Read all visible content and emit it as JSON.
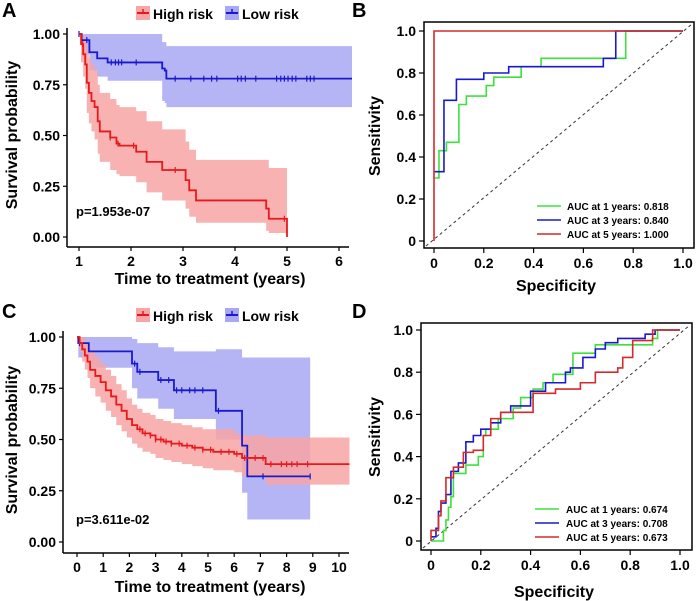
{
  "colors": {
    "high": "#e8191c",
    "high_band": "#f8a5a5",
    "low": "#1a1acc",
    "low_band": "#a8a8f5",
    "roc1": "#3ee03e",
    "roc3": "#1a1acc",
    "roc5": "#d42a2a"
  },
  "chart_data": [
    {
      "panel": "A",
      "type": "line",
      "subtype": "kaplan-meier",
      "title": "",
      "xlabel": "Time to treatment (years)",
      "ylabel": "Survival probability",
      "xlim": [
        0.85,
        6.25
      ],
      "ylim": [
        0,
        1
      ],
      "xticks": [
        "1",
        "2",
        "3",
        "4",
        "5",
        "6"
      ],
      "xtick_values": [
        1,
        2,
        3,
        4,
        5,
        6
      ],
      "yticks": [
        "0.00",
        "0.25",
        "0.50",
        "0.75",
        "1.00"
      ],
      "ytick_values": [
        0,
        0.25,
        0.5,
        0.75,
        1
      ],
      "legend": [
        "High risk",
        "Low risk"
      ],
      "legend_position": "top",
      "annotation": "p=1.953e-07",
      "series": [
        {
          "name": "High risk",
          "x": [
            1.0,
            1.04,
            1.08,
            1.12,
            1.15,
            1.19,
            1.24,
            1.3,
            1.36,
            1.4,
            1.43,
            1.6,
            1.72,
            1.78,
            2.1,
            2.3,
            2.6,
            2.9,
            3.05,
            3.12,
            3.25,
            4.6,
            4.65,
            4.7,
            5.0
          ],
          "y": [
            1.0,
            0.95,
            0.9,
            0.85,
            0.76,
            0.71,
            0.67,
            0.64,
            0.57,
            0.52,
            0.52,
            0.49,
            0.46,
            0.45,
            0.42,
            0.37,
            0.33,
            0.33,
            0.28,
            0.23,
            0.18,
            0.14,
            0.09,
            0.09,
            0.0
          ],
          "ci_upper": [
            1.0,
            1.0,
            1.0,
            0.97,
            0.92,
            0.88,
            0.85,
            0.82,
            0.75,
            0.71,
            0.71,
            0.68,
            0.65,
            0.64,
            0.62,
            0.57,
            0.53,
            0.53,
            0.47,
            0.43,
            0.38,
            0.38,
            0.34,
            0.34,
            0.34
          ],
          "ci_lower": [
            1.0,
            0.86,
            0.79,
            0.73,
            0.61,
            0.56,
            0.52,
            0.48,
            0.41,
            0.37,
            0.37,
            0.33,
            0.31,
            0.3,
            0.27,
            0.22,
            0.18,
            0.18,
            0.14,
            0.1,
            0.07,
            0.03,
            0.02,
            0.02,
            0.0
          ],
          "censored": [
            1.07,
            1.6,
            1.75,
            2.05,
            2.85,
            4.95
          ]
        },
        {
          "name": "Low risk",
          "x": [
            1.0,
            1.05,
            1.2,
            1.35,
            1.55,
            2.6,
            2.65,
            2.68,
            6.25
          ],
          "y": [
            1.0,
            0.97,
            0.91,
            0.88,
            0.86,
            0.83,
            0.82,
            0.78,
            0.78
          ],
          "ci_upper": [
            1.0,
            1.0,
            1.0,
            1.0,
            1.0,
            0.96,
            0.96,
            0.94,
            0.94
          ],
          "ci_lower": [
            1.0,
            0.9,
            0.82,
            0.79,
            0.77,
            0.67,
            0.66,
            0.64,
            0.64
          ],
          "censored": [
            1.0,
            1.15,
            1.62,
            1.7,
            1.76,
            1.82,
            2.1,
            2.85,
            3.15,
            3.4,
            3.55,
            3.65,
            4.05,
            4.12,
            4.2,
            4.4,
            4.8,
            4.88,
            4.95,
            5.02,
            5.1,
            5.17,
            5.38,
            5.45,
            5.52
          ]
        }
      ]
    },
    {
      "panel": "B",
      "type": "line",
      "subtype": "roc",
      "title": "",
      "xlabel": "Specificity",
      "ylabel": "Sensitivity",
      "xlim": [
        0,
        1
      ],
      "ylim": [
        0,
        1
      ],
      "xticks": [
        "0",
        "0.2",
        "0.4",
        "0.6",
        "0.8",
        "1.0"
      ],
      "xtick_values": [
        0,
        0.2,
        0.4,
        0.6,
        0.8,
        1.0
      ],
      "yticks": [
        "0",
        "0.2",
        "0.4",
        "0.6",
        "0.8",
        "1.0"
      ],
      "ytick_values": [
        0,
        0.2,
        0.4,
        0.6,
        0.8,
        1.0
      ],
      "legend_position": "bottom-right",
      "diagonal": true,
      "series": [
        {
          "name": "AUC at 1 years: 0.818",
          "auc": 0.818,
          "x": [
            0,
            0.02,
            0.02,
            0.05,
            0.05,
            0.1,
            0.1,
            0.13,
            0.13,
            0.21,
            0.21,
            0.24,
            0.24,
            0.35,
            0.35,
            0.43,
            0.43,
            0.77,
            0.77,
            1.0
          ],
          "y": [
            0.3,
            0.3,
            0.43,
            0.43,
            0.47,
            0.47,
            0.65,
            0.65,
            0.69,
            0.69,
            0.74,
            0.74,
            0.78,
            0.78,
            0.83,
            0.83,
            0.87,
            0.87,
            1.0,
            1.0
          ]
        },
        {
          "name": "AUC at 3 years: 0.840",
          "auc": 0.84,
          "x": [
            0,
            0.04,
            0.04,
            0.09,
            0.09,
            0.2,
            0.2,
            0.3,
            0.3,
            0.68,
            0.68,
            0.73,
            0.73,
            1.0
          ],
          "y": [
            0.33,
            0.33,
            0.67,
            0.67,
            0.77,
            0.77,
            0.8,
            0.8,
            0.83,
            0.83,
            0.87,
            0.87,
            1.0,
            1.0
          ]
        },
        {
          "name": "AUC at 5 years: 1.000",
          "auc": 1.0,
          "x": [
            0,
            0,
            1.0
          ],
          "y": [
            0,
            1.0,
            1.0
          ]
        }
      ]
    },
    {
      "panel": "C",
      "type": "line",
      "subtype": "kaplan-meier",
      "title": "",
      "xlabel": "Time to treatment (years)",
      "ylabel": "Survival probability",
      "xlim": [
        -0.35,
        10.4
      ],
      "ylim": [
        0,
        1
      ],
      "xticks": [
        "0",
        "1",
        "2",
        "3",
        "4",
        "5",
        "6",
        "7",
        "8",
        "9",
        "10"
      ],
      "xtick_values": [
        0,
        1,
        2,
        3,
        4,
        5,
        6,
        7,
        8,
        9,
        10
      ],
      "yticks": [
        "0.00",
        "0.25",
        "0.50",
        "0.75",
        "1.00"
      ],
      "ytick_values": [
        0,
        0.25,
        0.5,
        0.75,
        1
      ],
      "legend": [
        "High risk",
        "Low risk"
      ],
      "legend_position": "top",
      "annotation": "p=3.611e-02",
      "series": [
        {
          "name": "High risk",
          "x": [
            0,
            0.1,
            0.2,
            0.3,
            0.4,
            0.5,
            0.7,
            0.9,
            1.1,
            1.3,
            1.5,
            1.7,
            1.9,
            2.1,
            2.3,
            2.5,
            2.8,
            3.0,
            3.3,
            3.6,
            4.0,
            4.4,
            4.8,
            5.2,
            6.0,
            6.3,
            7.2,
            10.4
          ],
          "y": [
            1.0,
            0.97,
            0.94,
            0.91,
            0.88,
            0.84,
            0.81,
            0.78,
            0.74,
            0.71,
            0.67,
            0.64,
            0.6,
            0.57,
            0.55,
            0.53,
            0.52,
            0.5,
            0.49,
            0.48,
            0.47,
            0.46,
            0.45,
            0.44,
            0.43,
            0.41,
            0.38,
            0.38
          ],
          "ci_upper": [
            1.0,
            1.0,
            1.0,
            0.98,
            0.96,
            0.93,
            0.9,
            0.87,
            0.84,
            0.81,
            0.77,
            0.74,
            0.7,
            0.67,
            0.65,
            0.63,
            0.62,
            0.6,
            0.59,
            0.58,
            0.57,
            0.56,
            0.55,
            0.55,
            0.53,
            0.52,
            0.51,
            0.51
          ],
          "ci_lower": [
            1.0,
            0.93,
            0.88,
            0.84,
            0.8,
            0.75,
            0.71,
            0.68,
            0.64,
            0.61,
            0.57,
            0.54,
            0.51,
            0.48,
            0.46,
            0.44,
            0.43,
            0.41,
            0.4,
            0.39,
            0.38,
            0.37,
            0.36,
            0.35,
            0.34,
            0.32,
            0.28,
            0.28
          ],
          "censored": [
            2.4,
            2.6,
            2.8,
            3.0,
            3.2,
            3.4,
            3.6,
            3.9,
            4.2,
            4.5,
            4.8,
            5.1,
            5.5,
            5.8,
            6.1,
            6.4,
            6.8,
            7.1,
            7.4,
            7.8,
            8.0,
            8.2,
            8.4,
            8.8
          ]
        },
        {
          "name": "Low risk",
          "x": [
            0,
            0.05,
            0.45,
            2.1,
            2.3,
            3.1,
            3.7,
            5.3,
            6.3,
            6.5,
            8.9
          ],
          "y": [
            1.0,
            0.97,
            0.93,
            0.87,
            0.83,
            0.79,
            0.74,
            0.64,
            0.47,
            0.32,
            0.32
          ],
          "ci_upper": [
            1.0,
            1.0,
            1.0,
            0.99,
            0.97,
            0.95,
            0.93,
            0.94,
            0.9,
            0.9,
            0.9
          ],
          "ci_lower": [
            1.0,
            0.9,
            0.85,
            0.75,
            0.7,
            0.65,
            0.6,
            0.5,
            0.24,
            0.11,
            0.11
          ],
          "censored": [
            0.1,
            2.2,
            2.4,
            3.2,
            3.5,
            3.8,
            4.0,
            4.3,
            4.5,
            4.8,
            5.4,
            7.1,
            8.9
          ]
        }
      ]
    },
    {
      "panel": "D",
      "type": "line",
      "subtype": "roc",
      "title": "",
      "xlabel": "Specificity",
      "ylabel": "Sensitivity",
      "xlim": [
        0,
        1
      ],
      "ylim": [
        0,
        1
      ],
      "xticks": [
        "0",
        "0.2",
        "0.4",
        "0.6",
        "0.8",
        "1.0"
      ],
      "xtick_values": [
        0,
        0.2,
        0.4,
        0.6,
        0.8,
        1.0
      ],
      "yticks": [
        "0",
        "0.2",
        "0.4",
        "0.6",
        "0.8",
        "1.0"
      ],
      "ytick_values": [
        0,
        0.2,
        0.4,
        0.6,
        0.8,
        1.0
      ],
      "legend_position": "bottom-right",
      "diagonal": true,
      "series": [
        {
          "name": "AUC at 1 years: 0.674",
          "auc": 0.674,
          "x": [
            0,
            0.05,
            0.05,
            0.06,
            0.06,
            0.07,
            0.07,
            0.08,
            0.08,
            0.09,
            0.09,
            0.14,
            0.14,
            0.19,
            0.19,
            0.21,
            0.21,
            0.22,
            0.22,
            0.27,
            0.27,
            0.33,
            0.33,
            0.36,
            0.36,
            0.41,
            0.41,
            0.45,
            0.45,
            0.49,
            0.49,
            0.57,
            0.57,
            0.66,
            0.66,
            0.89,
            0.89,
            0.91,
            0.91,
            1.0
          ],
          "y": [
            0,
            0,
            0.05,
            0.05,
            0.1,
            0.1,
            0.16,
            0.16,
            0.21,
            0.21,
            0.32,
            0.32,
            0.36,
            0.36,
            0.4,
            0.4,
            0.5,
            0.5,
            0.53,
            0.53,
            0.58,
            0.58,
            0.63,
            0.63,
            0.68,
            0.68,
            0.72,
            0.72,
            0.75,
            0.75,
            0.79,
            0.79,
            0.89,
            0.89,
            0.93,
            0.93,
            0.96,
            0.96,
            1.0,
            1.0
          ]
        },
        {
          "name": "AUC at 3 years: 0.708",
          "auc": 0.708,
          "x": [
            0,
            0.02,
            0.02,
            0.03,
            0.03,
            0.04,
            0.04,
            0.06,
            0.06,
            0.08,
            0.08,
            0.11,
            0.11,
            0.14,
            0.14,
            0.17,
            0.17,
            0.2,
            0.2,
            0.24,
            0.24,
            0.28,
            0.28,
            0.32,
            0.32,
            0.4,
            0.4,
            0.46,
            0.46,
            0.54,
            0.54,
            0.56,
            0.56,
            0.61,
            0.61,
            0.66,
            0.66,
            0.7,
            0.7,
            0.75,
            0.75,
            0.86,
            0.86,
            0.9,
            0.9,
            1.0
          ],
          "y": [
            0.02,
            0.02,
            0.06,
            0.06,
            0.14,
            0.14,
            0.18,
            0.18,
            0.22,
            0.22,
            0.33,
            0.33,
            0.37,
            0.37,
            0.47,
            0.47,
            0.5,
            0.5,
            0.53,
            0.53,
            0.56,
            0.56,
            0.61,
            0.61,
            0.64,
            0.64,
            0.71,
            0.71,
            0.75,
            0.75,
            0.8,
            0.8,
            0.82,
            0.82,
            0.87,
            0.87,
            0.91,
            0.91,
            0.94,
            0.94,
            0.96,
            0.96,
            0.98,
            0.98,
            1.0,
            1.0
          ]
        },
        {
          "name": "AUC at 5 years: 0.673",
          "auc": 0.673,
          "x": [
            0,
            0.0,
            0.03,
            0.03,
            0.04,
            0.04,
            0.06,
            0.06,
            0.09,
            0.09,
            0.13,
            0.13,
            0.17,
            0.17,
            0.21,
            0.21,
            0.24,
            0.24,
            0.28,
            0.28,
            0.41,
            0.41,
            0.5,
            0.5,
            0.6,
            0.6,
            0.66,
            0.66,
            0.75,
            0.75,
            0.77,
            0.77,
            0.81,
            0.81,
            0.89,
            0.89,
            1.0
          ],
          "y": [
            0,
            0.05,
            0.05,
            0.12,
            0.12,
            0.19,
            0.19,
            0.3,
            0.3,
            0.35,
            0.35,
            0.42,
            0.42,
            0.43,
            0.43,
            0.5,
            0.5,
            0.58,
            0.58,
            0.61,
            0.61,
            0.7,
            0.7,
            0.72,
            0.72,
            0.75,
            0.75,
            0.8,
            0.8,
            0.82,
            0.82,
            0.87,
            0.87,
            0.95,
            0.95,
            1.0,
            1.0
          ]
        }
      ]
    }
  ],
  "panels": {
    "A": {
      "label": "A",
      "legend_high": "High risk",
      "legend_low": "Low risk",
      "pvalue": "p=1.953e-07",
      "xlabel": "Time to treatment (years)",
      "ylabel": "Survival probability"
    },
    "B": {
      "label": "B",
      "xlabel": "Specificity",
      "ylabel": "Sensitivity",
      "legend": [
        "AUC at 1 years: 0.818",
        "AUC at 3 years: 0.840",
        "AUC at 5 years: 1.000"
      ]
    },
    "C": {
      "label": "C",
      "legend_high": "High risk",
      "legend_low": "Low risk",
      "pvalue": "p=3.611e-02",
      "xlabel": "Time to treatment (years)",
      "ylabel": "Survival probability"
    },
    "D": {
      "label": "D",
      "xlabel": "Specificity",
      "ylabel": "Sensitivity",
      "legend": [
        "AUC at 1 years: 0.674",
        "AUC at 3 years: 0.708",
        "AUC at 5 years: 0.673"
      ]
    }
  }
}
